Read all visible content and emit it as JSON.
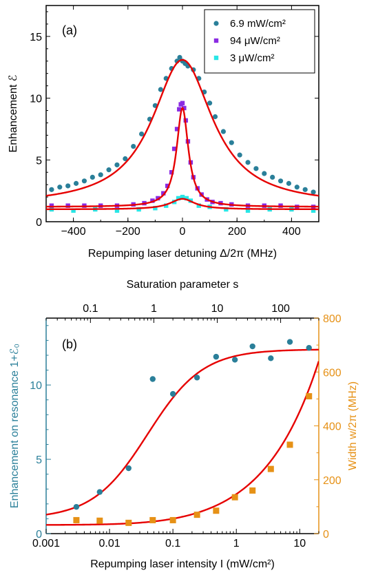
{
  "chart_data": [
    {
      "panel_label": "(a)",
      "type": "scatter",
      "xlabel": "Repumping laser detuning Δ/2π (MHz)",
      "ylabel": "Enhancement ℰ",
      "xlim": [
        -500,
        500
      ],
      "ylim": [
        0,
        17.5
      ],
      "xticks": [
        "−400",
        "−200",
        "0",
        "200",
        "400"
      ],
      "yticks": [
        "0",
        "5",
        "10",
        "15"
      ],
      "legend_position": "top-right",
      "legend": [
        {
          "label": "6.9 mW/cm²",
          "marker": "circle",
          "color": "#2a7f99"
        },
        {
          "label": "94 μW/cm²",
          "marker": "square",
          "color": "#8a2be2"
        },
        {
          "label": "3 μW/cm²",
          "marker": "square",
          "color": "#29e6e6"
        }
      ],
      "series": [
        {
          "name": "6.9 mW/cm²",
          "x": [
            -480,
            -450,
            -420,
            -390,
            -360,
            -330,
            -300,
            -270,
            -240,
            -210,
            -180,
            -150,
            -120,
            -100,
            -80,
            -60,
            -40,
            -20,
            -10,
            0,
            10,
            20,
            40,
            60,
            80,
            100,
            120,
            150,
            180,
            210,
            240,
            270,
            300,
            330,
            360,
            390,
            420,
            450,
            480
          ],
          "y": [
            2.6,
            2.8,
            2.9,
            3.1,
            3.3,
            3.6,
            3.8,
            4.2,
            4.6,
            5.1,
            6.1,
            7.1,
            8.3,
            9.4,
            10.7,
            11.6,
            12.4,
            13.0,
            13.3,
            13.0,
            12.8,
            12.6,
            12.3,
            11.6,
            10.5,
            9.6,
            8.5,
            7.3,
            6.4,
            5.4,
            4.8,
            4.3,
            3.9,
            3.6,
            3.3,
            3.1,
            2.8,
            2.6,
            2.4
          ]
        },
        {
          "name": "94 μW/cm²",
          "x": [
            -480,
            -420,
            -360,
            -300,
            -240,
            -180,
            -140,
            -110,
            -90,
            -70,
            -55,
            -40,
            -30,
            -20,
            -12,
            -6,
            0,
            6,
            12,
            20,
            30,
            40,
            55,
            70,
            90,
            110,
            140,
            180,
            240,
            300,
            360,
            420,
            480
          ],
          "y": [
            1.3,
            1.3,
            1.3,
            1.3,
            1.3,
            1.4,
            1.5,
            1.7,
            1.9,
            2.3,
            2.9,
            4.0,
            5.9,
            7.5,
            9.1,
            9.5,
            9.6,
            9.2,
            8.2,
            6.5,
            4.8,
            3.6,
            2.7,
            2.2,
            1.8,
            1.6,
            1.5,
            1.4,
            1.3,
            1.3,
            1.3,
            1.2,
            1.2
          ]
        },
        {
          "name": "3 μW/cm²",
          "x": [
            -480,
            -400,
            -320,
            -240,
            -160,
            -100,
            -60,
            -30,
            -15,
            0,
            15,
            30,
            60,
            100,
            160,
            240,
            320,
            400,
            480
          ],
          "y": [
            1.0,
            0.9,
            1.0,
            0.9,
            1.0,
            1.1,
            1.3,
            1.6,
            1.9,
            2.0,
            1.9,
            1.7,
            1.3,
            1.2,
            1.0,
            0.9,
            1.0,
            1.0,
            0.9
          ]
        }
      ],
      "fits": [
        {
          "type": "lorentzian",
          "baseline": 1.3,
          "amplitude": 11.8,
          "fwhm": 270,
          "center": 0,
          "color": "#e60000"
        },
        {
          "type": "lorentzian",
          "baseline": 1.2,
          "amplitude": 8.0,
          "fwhm": 52,
          "center": 0,
          "color": "#e60000"
        },
        {
          "type": "lorentzian",
          "baseline": 1.0,
          "amplitude": 0.85,
          "fwhm": 110,
          "center": 0,
          "color": "#e60000"
        }
      ]
    },
    {
      "panel_label": "(b)",
      "type": "scatter",
      "xscale": "log",
      "xlabel": "Repumping laser intensity I (mW/cm²)",
      "x2label": "Saturation parameter s",
      "ylabel": "Enhancement on resonance 1+ℰ₀",
      "y2label": "Width w/2π (MHz)",
      "xlim": [
        0.001,
        20
      ],
      "ylim": [
        0,
        14.5
      ],
      "y2lim": [
        0,
        800
      ],
      "xticks": [
        "0.001",
        "0.01",
        "0.1",
        "1",
        "10"
      ],
      "x2ticks": [
        "0.1",
        "1",
        "10",
        "100"
      ],
      "yticks": [
        "0",
        "5",
        "10"
      ],
      "y2ticks": [
        "0",
        "200",
        "400",
        "600",
        "800"
      ],
      "colors": {
        "enhancement": "#2a7f99",
        "width": "#e69116",
        "fit": "#e60000"
      },
      "series": [
        {
          "name": "Enhancement",
          "axis": "left",
          "marker": "circle",
          "x": [
            0.003,
            0.007,
            0.02,
            0.048,
            0.1,
            0.24,
            0.48,
            0.95,
            1.8,
            3.5,
            7,
            14
          ],
          "y": [
            1.8,
            2.8,
            4.4,
            10.4,
            9.4,
            10.5,
            11.9,
            11.7,
            12.6,
            11.8,
            12.9,
            12.5
          ]
        },
        {
          "name": "Width",
          "axis": "right",
          "marker": "square",
          "x": [
            0.003,
            0.007,
            0.02,
            0.048,
            0.1,
            0.24,
            0.48,
            0.95,
            1.8,
            3.5,
            7,
            14
          ],
          "y": [
            50,
            48,
            40,
            50,
            50,
            70,
            85,
            135,
            160,
            240,
            330,
            510
          ]
        }
      ],
      "fits": [
        {
          "type": "saturation",
          "axis": "left",
          "base": 1.0,
          "amplitude": 11.4,
          "isat": 0.04,
          "color": "#e60000"
        },
        {
          "type": "power-broadening",
          "axis": "right",
          "w0": 32,
          "isat": 0.05,
          "color": "#e60000"
        }
      ]
    }
  ]
}
